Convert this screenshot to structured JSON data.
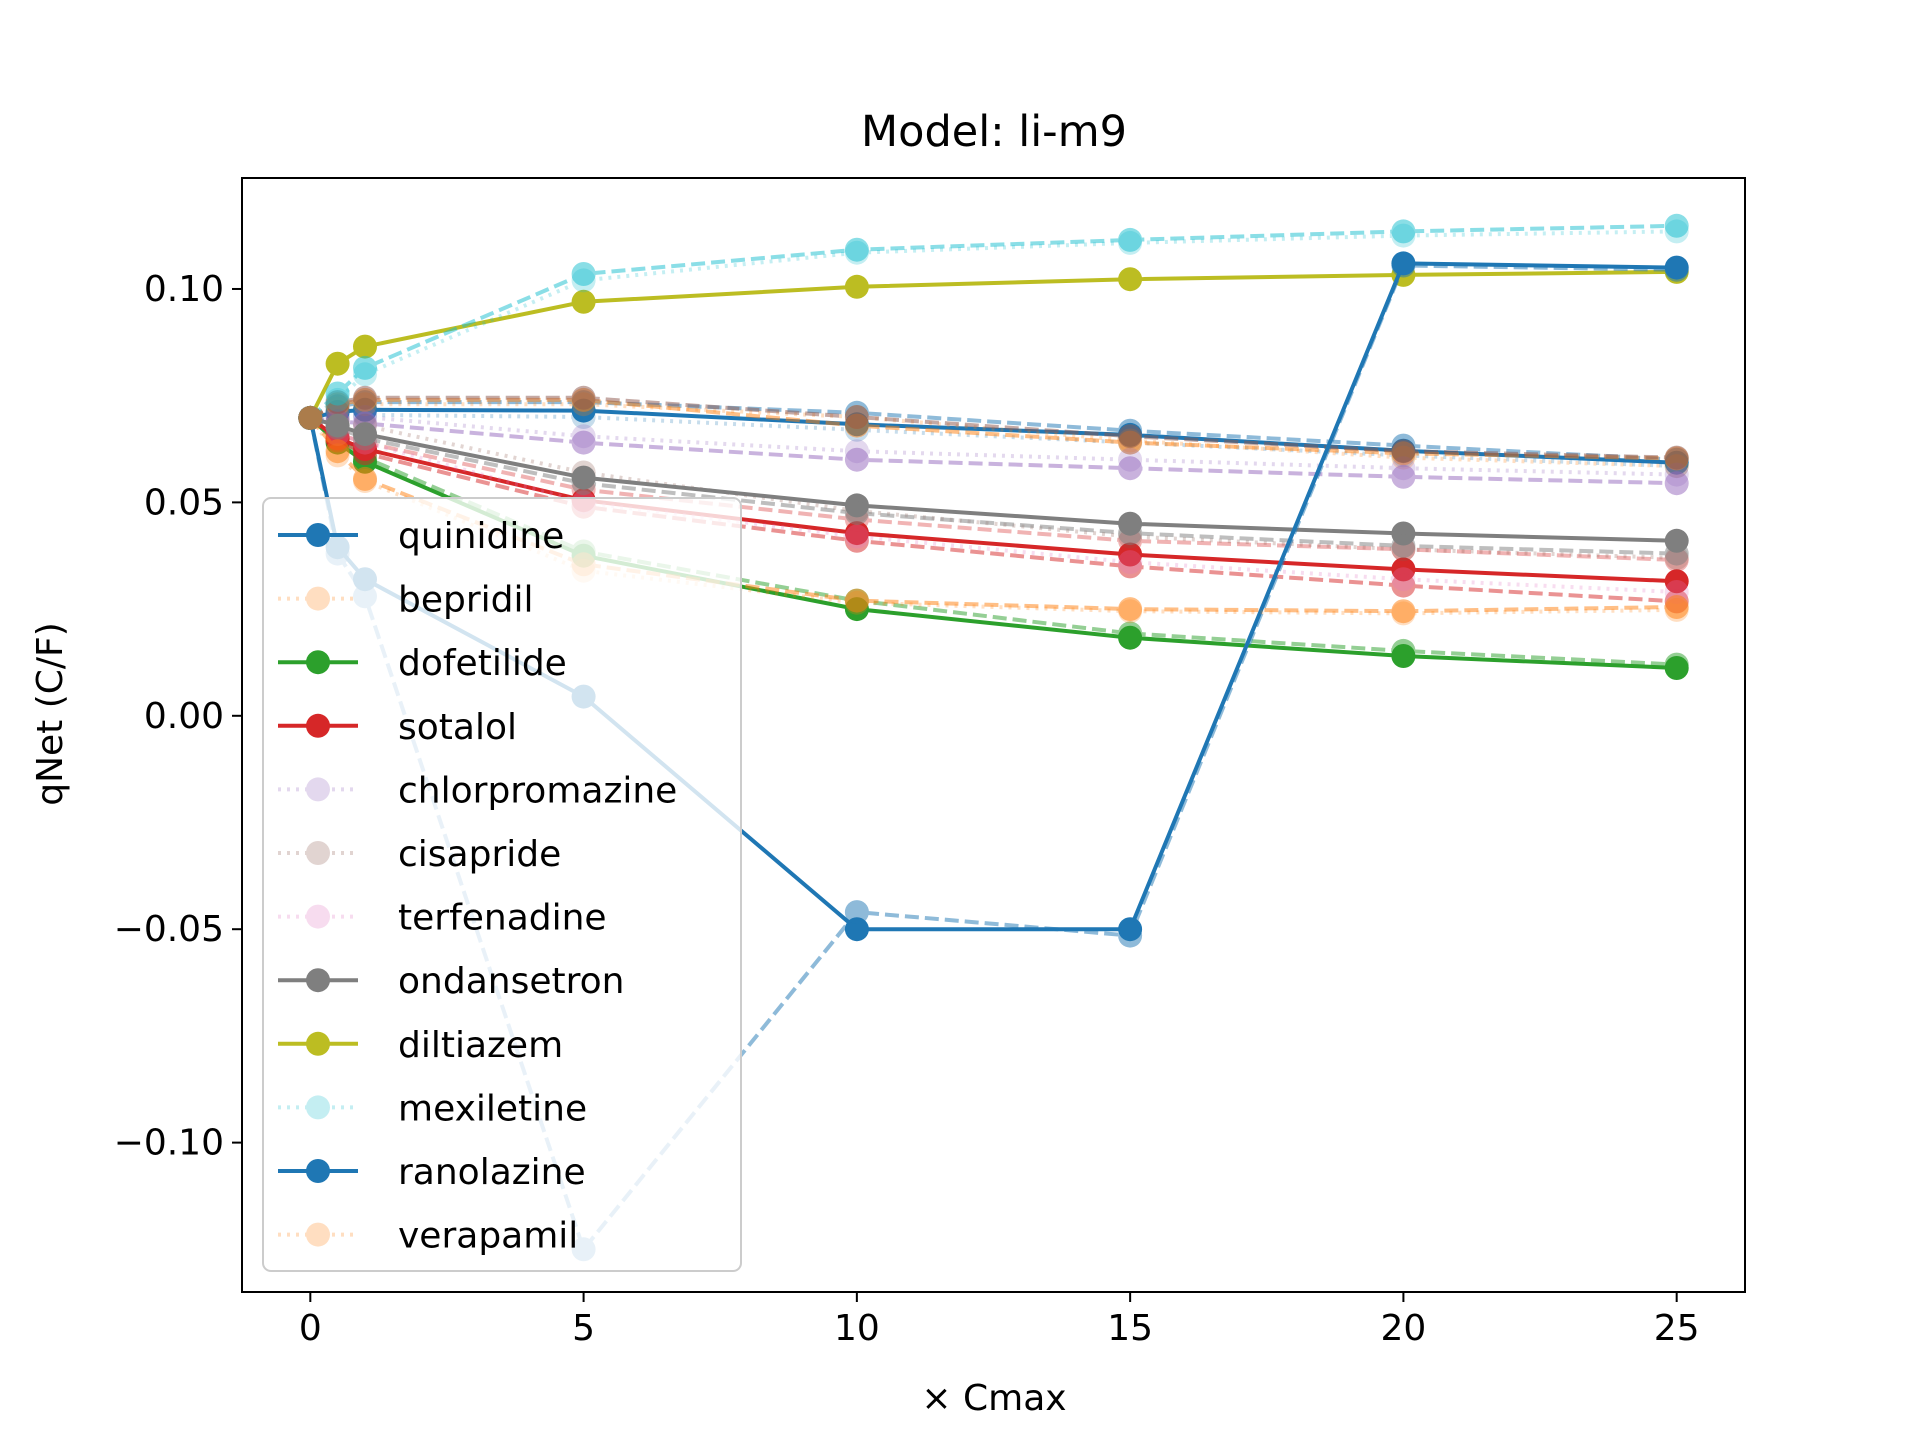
{
  "chart_data": {
    "type": "line",
    "title": "Model: li-m9",
    "xlabel": "× Cmax",
    "ylabel": "qNet (C/F)",
    "xlim": [
      -1.25,
      26.25
    ],
    "ylim": [
      -0.135,
      0.126
    ],
    "xticks": [
      0,
      5,
      10,
      15,
      20,
      25
    ],
    "xtick_labels": [
      "0",
      "5",
      "10",
      "15",
      "20",
      "25"
    ],
    "yticks": [
      -0.1,
      -0.05,
      0.0,
      0.05,
      0.1
    ],
    "ytick_labels": [
      "−0.10",
      "−0.05",
      "0.00",
      "0.05",
      "0.10"
    ],
    "grid": false,
    "legend_position": "lower-left",
    "x": [
      0,
      0.5,
      1,
      5,
      10,
      15,
      20,
      25
    ],
    "series": [
      {
        "name": "quinidine",
        "color": "#1f77b4",
        "style": "solid",
        "alpha": 1.0,
        "legend": true,
        "values": [
          0.0698,
          0.0712,
          0.0717,
          0.0715,
          0.0683,
          0.0658,
          0.0621,
          0.0593
        ]
      },
      {
        "name": "",
        "color": "#1f77b4",
        "style": "dashed",
        "alpha": 0.5,
        "legend": false,
        "values": [
          0.0698,
          0.0725,
          0.0735,
          0.0735,
          0.071,
          0.0668,
          0.0633,
          0.06
        ]
      },
      {
        "name": "",
        "color": "#1f77b4",
        "style": "dotted",
        "alpha": 0.25,
        "legend": false,
        "values": [
          0.0698,
          0.07,
          0.0705,
          0.07,
          0.067,
          0.064,
          0.061,
          0.0585
        ]
      },
      {
        "name": "bepridil",
        "color": "#ff7f0e",
        "style": "dotted",
        "alpha": 0.25,
        "legend": true,
        "values": [
          0.0698,
          0.072,
          0.073,
          0.073,
          0.07,
          0.0645,
          0.0605,
          0.0585
        ]
      },
      {
        "name": "",
        "color": "#ff7f0e",
        "style": "dashed",
        "alpha": 0.5,
        "legend": false,
        "values": [
          0.0698,
          0.073,
          0.074,
          0.074,
          0.068,
          0.064,
          0.0615,
          0.0603
        ]
      },
      {
        "name": "dofetilide",
        "color": "#2ca02c",
        "style": "solid",
        "alpha": 1.0,
        "legend": true,
        "values": [
          0.0698,
          0.064,
          0.0595,
          0.0375,
          0.025,
          0.0183,
          0.014,
          0.0112
        ]
      },
      {
        "name": "",
        "color": "#2ca02c",
        "style": "dashed",
        "alpha": 0.5,
        "legend": false,
        "values": [
          0.0698,
          0.065,
          0.0605,
          0.0385,
          0.027,
          0.0193,
          0.0152,
          0.012
        ]
      },
      {
        "name": "sotalol",
        "color": "#d62728",
        "style": "solid",
        "alpha": 1.0,
        "legend": true,
        "values": [
          0.0698,
          0.065,
          0.0625,
          0.0505,
          0.0428,
          0.0378,
          0.0343,
          0.0315
        ]
      },
      {
        "name": "",
        "color": "#d62728",
        "style": "dashed",
        "alpha": 0.5,
        "legend": false,
        "values": [
          0.0698,
          0.0645,
          0.0615,
          0.049,
          0.041,
          0.035,
          0.0305,
          0.0268
        ]
      },
      {
        "name": "",
        "color": "#d62728",
        "style": "dashed",
        "alpha": 0.35,
        "legend": false,
        "values": [
          0.0698,
          0.066,
          0.064,
          0.053,
          0.046,
          0.041,
          0.039,
          0.0365
        ]
      },
      {
        "name": "chlorpromazine",
        "color": "#9467bd",
        "style": "dotted",
        "alpha": 0.25,
        "legend": true,
        "values": [
          0.0698,
          0.07,
          0.07,
          0.0655,
          0.062,
          0.06,
          0.058,
          0.0565
        ]
      },
      {
        "name": "",
        "color": "#9467bd",
        "style": "dashed",
        "alpha": 0.5,
        "legend": false,
        "values": [
          0.0698,
          0.069,
          0.0685,
          0.064,
          0.06,
          0.058,
          0.056,
          0.0545
        ]
      },
      {
        "name": "cisapride",
        "color": "#8c564b",
        "style": "dotted",
        "alpha": 0.25,
        "legend": true,
        "values": [
          0.0698,
          0.069,
          0.068,
          0.057,
          0.048,
          0.042,
          0.039,
          0.037
        ]
      },
      {
        "name": "",
        "color": "#8c564b",
        "style": "dashed",
        "alpha": 0.5,
        "legend": false,
        "values": [
          0.0698,
          0.0735,
          0.0745,
          0.0745,
          0.07,
          0.0655,
          0.062,
          0.0605
        ]
      },
      {
        "name": "terfenadine",
        "color": "#e377c2",
        "style": "dotted",
        "alpha": 0.25,
        "legend": true,
        "values": [
          0.0698,
          0.066,
          0.064,
          0.05,
          0.042,
          0.036,
          0.032,
          0.029
        ]
      },
      {
        "name": "ondansetron",
        "color": "#7f7f7f",
        "style": "solid",
        "alpha": 1.0,
        "legend": true,
        "values": [
          0.0698,
          0.068,
          0.066,
          0.0558,
          0.0493,
          0.045,
          0.0427,
          0.041
        ]
      },
      {
        "name": "",
        "color": "#7f7f7f",
        "style": "dashed",
        "alpha": 0.5,
        "legend": false,
        "values": [
          0.0698,
          0.0675,
          0.065,
          0.0545,
          0.0475,
          0.0428,
          0.0398,
          0.038
        ]
      },
      {
        "name": "diltiazem",
        "color": "#bcbd22",
        "style": "solid",
        "alpha": 1.0,
        "legend": true,
        "values": [
          0.0698,
          0.0825,
          0.0865,
          0.097,
          0.1005,
          0.1023,
          0.1033,
          0.104
        ]
      },
      {
        "name": "mexiletine",
        "color": "#17becf",
        "style": "dotted",
        "alpha": 0.25,
        "legend": true,
        "values": [
          0.0698,
          0.074,
          0.08,
          0.102,
          0.1085,
          0.1108,
          0.1125,
          0.1135
        ]
      },
      {
        "name": "",
        "color": "#17becf",
        "style": "dashed",
        "alpha": 0.5,
        "legend": false,
        "values": [
          0.0698,
          0.0755,
          0.0815,
          0.1035,
          0.1092,
          0.1115,
          0.1135,
          0.1148
        ]
      },
      {
        "name": "ranolazine",
        "color": "#1f77b4",
        "style": "solid",
        "alpha": 1.0,
        "legend": true,
        "values": [
          0.0698,
          0.0395,
          0.032,
          0.0045,
          -0.05,
          -0.05,
          0.106,
          0.105
        ]
      },
      {
        "name": "",
        "color": "#1f77b4",
        "style": "dashed",
        "alpha": 0.5,
        "legend": false,
        "values": [
          0.0698,
          0.038,
          0.028,
          -0.125,
          -0.046,
          -0.0515,
          0.1055,
          0.1045
        ]
      },
      {
        "name": "verapamil",
        "color": "#ff7f0e",
        "style": "dotted",
        "alpha": 0.25,
        "legend": true,
        "values": [
          0.0698,
          0.061,
          0.055,
          0.034,
          0.0265,
          0.0245,
          0.024,
          0.0248
        ]
      },
      {
        "name": "",
        "color": "#ff7f0e",
        "style": "dashed",
        "alpha": 0.5,
        "legend": false,
        "values": [
          0.0698,
          0.062,
          0.0555,
          0.0355,
          0.027,
          0.025,
          0.0245,
          0.0255
        ]
      }
    ]
  }
}
